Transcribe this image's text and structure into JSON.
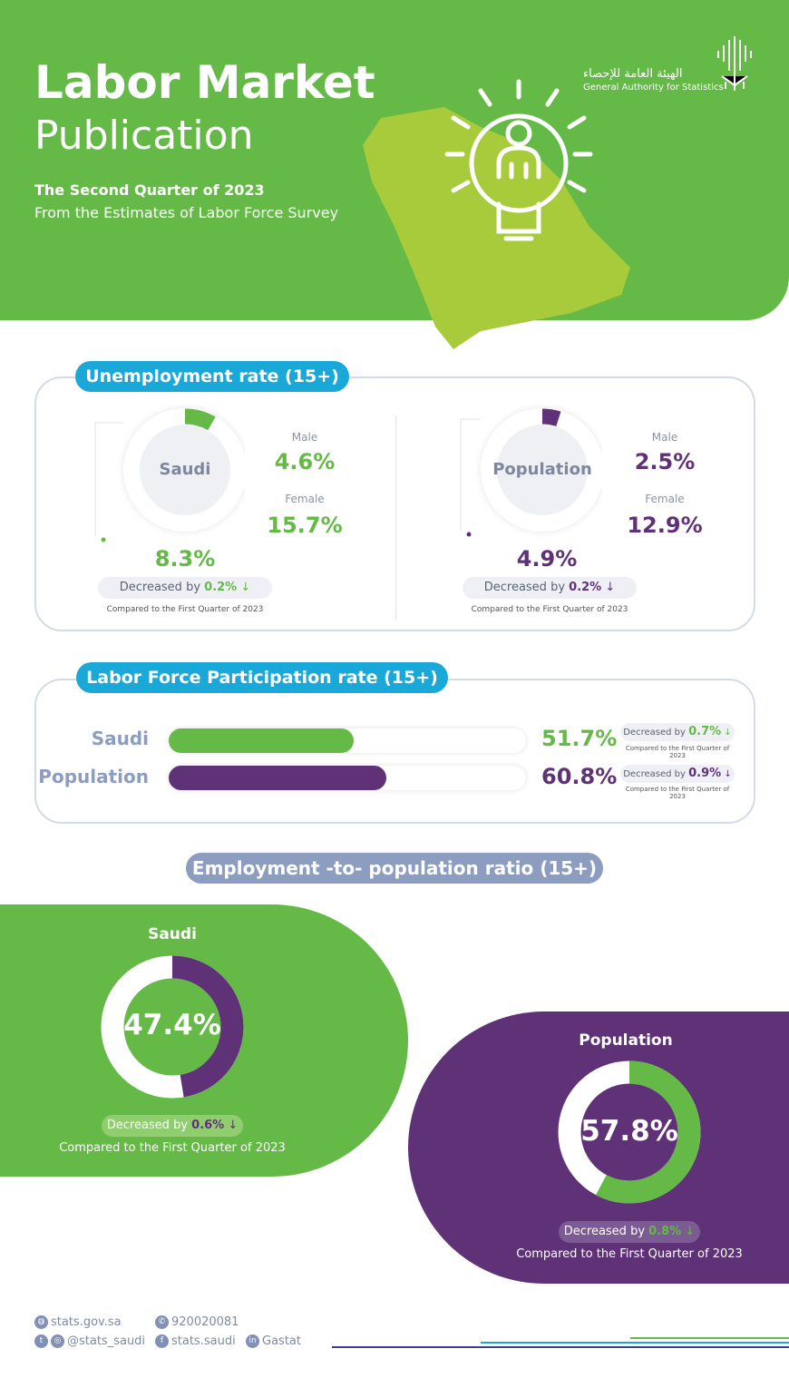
{
  "header": {
    "title_line1": "Labor Market",
    "title_line2": "Publication",
    "subtitle": "The Second Quarter of 2023",
    "source": "From the Estimates of Labor Force Survey",
    "logo_ar": "الهيئة العامة للإحصاء",
    "logo_en": "General Authority for Statistics"
  },
  "unemployment": {
    "title": "Unemployment rate (15+)",
    "saudi": {
      "label": "Saudi",
      "total": "8.3%",
      "total_value": 8.3,
      "male_label": "Male",
      "male": "4.6%",
      "female_label": "Female",
      "female": "15.7%",
      "decreased_label": "Decreased by",
      "change": "0.2%",
      "compare": "Compared to the First Quarter of 2023"
    },
    "population": {
      "label": "Population",
      "total": "4.9%",
      "total_value": 4.9,
      "male_label": "Male",
      "male": "2.5%",
      "female_label": "Female",
      "female": "12.9%",
      "decreased_label": "Decreased by",
      "change": "0.2%",
      "compare": "Compared to the First Quarter of 2023"
    }
  },
  "participation": {
    "title": "Labor Force Participation rate (15+)",
    "rows": [
      {
        "label": "Saudi",
        "value": "51.7%",
        "value_num": 51.7,
        "decreased_label": "Decreased by",
        "change": "0.7%",
        "compare": "Compared to the First Quarter of 2023"
      },
      {
        "label": "Population",
        "value": "60.8%",
        "value_num": 60.8,
        "decreased_label": "Decreased by",
        "change": "0.9%",
        "compare": "Compared to the First Quarter of 2023"
      }
    ]
  },
  "employment": {
    "title": "Employment -to- population ratio  (15+)",
    "saudi": {
      "label": "Saudi",
      "value": "47.4%",
      "value_num": 47.4,
      "decreased_label": "Decreased by",
      "change": "0.6%",
      "compare": "Compared to the First Quarter of 2023"
    },
    "population": {
      "label": "Population",
      "value": "57.8%",
      "value_num": 57.8,
      "decreased_label": "Decreased by",
      "change": "0.8%",
      "compare": "Compared to the First Quarter of 2023"
    }
  },
  "footer": {
    "website": "stats.gov.sa",
    "phone": "920020081",
    "twitter_instagram": "@stats_saudi",
    "facebook": "stats.saudi",
    "linkedin": "Gastat"
  },
  "colors": {
    "green": "#65b947",
    "purple": "#5f3177",
    "blue": "#1aa8d8",
    "grey": "#8c9dbf"
  }
}
